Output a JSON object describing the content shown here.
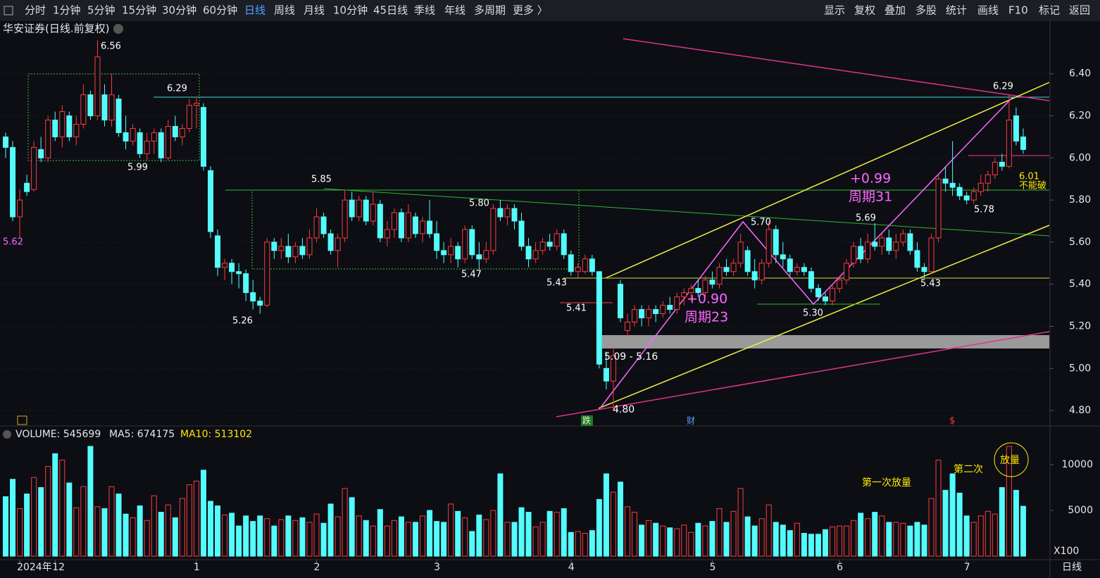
{
  "toolbar": {
    "left": [
      "分时",
      "1分钟",
      "5分钟",
      "15分钟",
      "30分钟",
      "60分钟",
      "日线",
      "周线",
      "月线",
      "10分钟",
      "45日线",
      "季线",
      "年线",
      "多周期",
      "更多 〉"
    ],
    "right": [
      "显示",
      "复权",
      "叠加",
      "多股",
      "统计",
      "画线",
      "F10",
      "标记",
      "返回"
    ]
  },
  "chart_data": {
    "type": "candlestick",
    "title": "华安证券(日线.前复权)",
    "up_color": "#ff3b3b",
    "down_color": "#54fcfc",
    "categories": [
      null,
      null,
      "2024年",
      null,
      null,
      null,
      null,
      "12",
      null,
      null,
      null,
      null,
      null,
      null,
      null,
      null,
      null,
      null,
      null,
      null,
      null,
      null,
      null,
      null,
      null,
      null,
      null,
      "1",
      null,
      null,
      null,
      null,
      null,
      null,
      null,
      null,
      null,
      null,
      null,
      null,
      null,
      null,
      null,
      null,
      "2",
      null,
      null,
      null,
      null,
      null,
      null,
      null,
      null,
      null,
      null,
      null,
      null,
      null,
      null,
      null,
      null,
      "3",
      null,
      null,
      null,
      null,
      null,
      null,
      null,
      null,
      null,
      null,
      null,
      null,
      null,
      null,
      null,
      null,
      null,
      null,
      "4",
      null,
      null,
      null,
      null,
      null,
      null,
      null,
      null,
      null,
      null,
      null,
      null,
      null,
      null,
      null,
      null,
      null,
      null,
      null,
      "5",
      null,
      null,
      null,
      null,
      null,
      null,
      null,
      null,
      null,
      null,
      null,
      null,
      null,
      null,
      null,
      null,
      null,
      "6",
      null,
      null,
      null,
      null,
      null,
      null,
      null,
      null,
      null,
      null,
      null,
      null,
      null,
      null,
      null,
      null,
      null,
      "7",
      null,
      null,
      null,
      null,
      null,
      null,
      null,
      null
    ],
    "ohlc": [
      [
        6.1,
        6.12,
        6.0,
        6.05
      ],
      [
        6.05,
        6.08,
        5.7,
        5.72
      ],
      [
        5.72,
        5.85,
        5.62,
        5.8
      ],
      [
        5.88,
        5.92,
        5.82,
        5.84
      ],
      [
        5.85,
        6.08,
        5.84,
        6.05
      ],
      [
        6.04,
        6.1,
        5.98,
        6.0
      ],
      [
        6.0,
        6.2,
        5.98,
        6.18
      ],
      [
        6.18,
        6.22,
        6.08,
        6.1
      ],
      [
        6.1,
        6.25,
        6.05,
        6.22
      ],
      [
        6.2,
        6.22,
        6.08,
        6.1
      ],
      [
        6.1,
        6.2,
        6.06,
        6.16
      ],
      [
        6.16,
        6.35,
        6.14,
        6.3
      ],
      [
        6.3,
        6.32,
        6.18,
        6.2
      ],
      [
        6.2,
        6.56,
        6.18,
        6.48
      ],
      [
        6.3,
        6.35,
        6.15,
        6.18
      ],
      [
        6.18,
        6.4,
        6.15,
        6.3
      ],
      [
        6.28,
        6.3,
        6.1,
        6.12
      ],
      [
        6.12,
        6.2,
        6.04,
        6.08
      ],
      [
        6.08,
        6.16,
        6.06,
        6.14
      ],
      [
        6.12,
        6.14,
        6.0,
        6.02
      ],
      [
        6.02,
        6.12,
        5.99,
        6.08
      ],
      [
        6.08,
        6.14,
        6.02,
        6.12
      ],
      [
        6.12,
        6.14,
        5.98,
        6.0
      ],
      [
        6.0,
        6.18,
        5.99,
        6.15
      ],
      [
        6.15,
        6.2,
        6.08,
        6.1
      ],
      [
        6.1,
        6.16,
        6.06,
        6.14
      ],
      [
        6.14,
        6.28,
        6.12,
        6.25
      ],
      [
        6.25,
        6.29,
        6.14,
        6.26
      ],
      [
        6.24,
        6.26,
        5.94,
        5.96
      ],
      [
        5.94,
        5.96,
        5.62,
        5.65
      ],
      [
        5.63,
        5.66,
        5.44,
        5.48
      ],
      [
        5.48,
        5.52,
        5.42,
        5.5
      ],
      [
        5.5,
        5.52,
        5.4,
        5.46
      ],
      [
        5.46,
        5.5,
        5.38,
        5.45
      ],
      [
        5.45,
        5.47,
        5.32,
        5.36
      ],
      [
        5.36,
        5.42,
        5.28,
        5.32
      ],
      [
        5.32,
        5.34,
        5.26,
        5.3
      ],
      [
        5.3,
        5.62,
        5.29,
        5.6
      ],
      [
        5.6,
        5.62,
        5.52,
        5.56
      ],
      [
        5.56,
        5.62,
        5.52,
        5.58
      ],
      [
        5.58,
        5.64,
        5.5,
        5.53
      ],
      [
        5.53,
        5.6,
        5.5,
        5.58
      ],
      [
        5.58,
        5.62,
        5.52,
        5.54
      ],
      [
        5.54,
        5.66,
        5.52,
        5.62
      ],
      [
        5.62,
        5.76,
        5.6,
        5.72
      ],
      [
        5.72,
        5.74,
        5.62,
        5.64
      ],
      [
        5.64,
        5.66,
        5.54,
        5.56
      ],
      [
        5.56,
        5.64,
        5.48,
        5.62
      ],
      [
        5.62,
        5.85,
        5.6,
        5.8
      ],
      [
        5.8,
        5.84,
        5.7,
        5.72
      ],
      [
        5.72,
        5.82,
        5.7,
        5.8
      ],
      [
        5.8,
        5.82,
        5.68,
        5.7
      ],
      [
        5.7,
        5.84,
        5.68,
        5.78
      ],
      [
        5.78,
        5.8,
        5.6,
        5.62
      ],
      [
        5.62,
        5.7,
        5.58,
        5.66
      ],
      [
        5.66,
        5.76,
        5.62,
        5.74
      ],
      [
        5.74,
        5.76,
        5.6,
        5.62
      ],
      [
        5.62,
        5.78,
        5.6,
        5.74
      ],
      [
        5.72,
        5.74,
        5.62,
        5.64
      ],
      [
        5.64,
        5.72,
        5.6,
        5.7
      ],
      [
        5.7,
        5.8,
        5.62,
        5.64
      ],
      [
        5.64,
        5.7,
        5.52,
        5.56
      ],
      [
        5.56,
        5.6,
        5.5,
        5.54
      ],
      [
        5.54,
        5.62,
        5.5,
        5.58
      ],
      [
        5.58,
        5.6,
        5.48,
        5.52
      ],
      [
        5.52,
        5.68,
        5.5,
        5.66
      ],
      [
        5.66,
        5.68,
        5.52,
        5.54
      ],
      [
        5.54,
        5.6,
        5.47,
        5.52
      ],
      [
        5.52,
        5.6,
        5.5,
        5.56
      ],
      [
        5.56,
        5.78,
        5.54,
        5.76
      ],
      [
        5.76,
        5.8,
        5.7,
        5.72
      ],
      [
        5.72,
        5.78,
        5.68,
        5.76
      ],
      [
        5.76,
        5.78,
        5.66,
        5.7
      ],
      [
        5.7,
        5.74,
        5.56,
        5.58
      ],
      [
        5.58,
        5.62,
        5.48,
        5.52
      ],
      [
        5.52,
        5.6,
        5.5,
        5.56
      ],
      [
        5.56,
        5.62,
        5.54,
        5.6
      ],
      [
        5.6,
        5.64,
        5.56,
        5.58
      ],
      [
        5.58,
        5.66,
        5.56,
        5.64
      ],
      [
        5.64,
        5.66,
        5.52,
        5.54
      ],
      [
        5.54,
        5.56,
        5.44,
        5.46
      ],
      [
        5.46,
        5.5,
        5.43,
        5.48
      ],
      [
        5.46,
        5.54,
        5.45,
        5.52
      ],
      [
        5.52,
        5.54,
        5.44,
        5.46
      ],
      [
        5.46,
        5.46,
        5.0,
        5.02
      ],
      [
        5.0,
        5.08,
        4.9,
        4.94
      ],
      [
        4.94,
        5.1,
        4.8,
        5.06
      ],
      [
        5.4,
        5.42,
        5.22,
        5.24
      ],
      [
        5.18,
        5.26,
        5.15,
        5.22
      ],
      [
        5.22,
        5.3,
        5.2,
        5.28
      ],
      [
        5.28,
        5.3,
        5.2,
        5.24
      ],
      [
        5.24,
        5.3,
        5.2,
        5.28
      ],
      [
        5.28,
        5.3,
        5.22,
        5.26
      ],
      [
        5.26,
        5.32,
        5.24,
        5.3
      ],
      [
        5.3,
        5.34,
        5.26,
        5.28
      ],
      [
        5.28,
        5.36,
        5.26,
        5.34
      ],
      [
        5.34,
        5.38,
        5.3,
        5.36
      ],
      [
        5.36,
        5.4,
        5.32,
        5.38
      ],
      [
        5.38,
        5.42,
        5.34,
        5.36
      ],
      [
        5.36,
        5.44,
        5.34,
        5.42
      ],
      [
        5.42,
        5.46,
        5.38,
        5.4
      ],
      [
        5.4,
        5.5,
        5.38,
        5.48
      ],
      [
        5.48,
        5.52,
        5.44,
        5.46
      ],
      [
        5.46,
        5.52,
        5.44,
        5.5
      ],
      [
        5.5,
        5.64,
        5.48,
        5.6
      ],
      [
        5.56,
        5.58,
        5.44,
        5.46
      ],
      [
        5.46,
        5.52,
        5.38,
        5.42
      ],
      [
        5.42,
        5.52,
        5.4,
        5.5
      ],
      [
        5.5,
        5.7,
        5.48,
        5.66
      ],
      [
        5.66,
        5.68,
        5.5,
        5.54
      ],
      [
        5.54,
        5.6,
        5.48,
        5.52
      ],
      [
        5.52,
        5.54,
        5.44,
        5.46
      ],
      [
        5.46,
        5.5,
        5.44,
        5.48
      ],
      [
        5.48,
        5.5,
        5.44,
        5.46
      ],
      [
        5.46,
        5.48,
        5.36,
        5.38
      ],
      [
        5.38,
        5.4,
        5.32,
        5.34
      ],
      [
        5.34,
        5.36,
        5.3,
        5.32
      ],
      [
        5.32,
        5.4,
        5.3,
        5.38
      ],
      [
        5.38,
        5.44,
        5.36,
        5.42
      ],
      [
        5.42,
        5.52,
        5.4,
        5.5
      ],
      [
        5.5,
        5.6,
        5.48,
        5.58
      ],
      [
        5.58,
        5.62,
        5.5,
        5.52
      ],
      [
        5.52,
        5.64,
        5.5,
        5.6
      ],
      [
        5.6,
        5.69,
        5.56,
        5.58
      ],
      [
        5.58,
        5.64,
        5.54,
        5.62
      ],
      [
        5.62,
        5.66,
        5.54,
        5.56
      ],
      [
        5.56,
        5.64,
        5.52,
        5.6
      ],
      [
        5.6,
        5.66,
        5.58,
        5.64
      ],
      [
        5.64,
        5.66,
        5.54,
        5.56
      ],
      [
        5.56,
        5.6,
        5.46,
        5.48
      ],
      [
        5.48,
        5.5,
        5.43,
        5.46
      ],
      [
        5.46,
        5.64,
        5.45,
        5.62
      ],
      [
        5.62,
        5.92,
        5.6,
        5.9
      ],
      [
        5.9,
        5.96,
        5.84,
        5.88
      ],
      [
        5.88,
        6.08,
        5.82,
        5.86
      ],
      [
        5.86,
        5.88,
        5.8,
        5.82
      ],
      [
        5.82,
        5.84,
        5.78,
        5.8
      ],
      [
        5.8,
        5.86,
        5.78,
        5.84
      ],
      [
        5.84,
        5.92,
        5.82,
        5.88
      ],
      [
        5.88,
        5.94,
        5.84,
        5.92
      ],
      [
        5.92,
        6.0,
        5.9,
        5.98
      ],
      [
        5.98,
        6.02,
        5.94,
        5.96
      ],
      [
        5.96,
        6.3,
        5.95,
        6.18
      ],
      [
        6.2,
        6.24,
        6.06,
        6.08
      ],
      [
        6.1,
        6.14,
        6.02,
        6.04
      ]
    ],
    "volume": [
      6500,
      8400,
      5200,
      6800,
      8600,
      7500,
      9800,
      11200,
      10500,
      8000,
      5300,
      7600,
      12000,
      5400,
      5200,
      7600,
      6800,
      4600,
      4200,
      5500,
      3900,
      6600,
      4800,
      5600,
      4200,
      6300,
      7800,
      8200,
      9400,
      6000,
      5500,
      4500,
      4700,
      3300,
      4400,
      3800,
      4400,
      4100,
      3300,
      4000,
      4400,
      3900,
      4200,
      3700,
      4600,
      3600,
      5700,
      4300,
      7400,
      6400,
      4400,
      3900,
      3300,
      5100,
      3300,
      3900,
      4300,
      3700,
      3700,
      4400,
      5000,
      3800,
      3700,
      5700,
      4900,
      4200,
      2700,
      4500,
      4000,
      5000,
      9000,
      3700,
      3700,
      5300,
      4800,
      3200,
      3700,
      4900,
      4800,
      5200,
      2600,
      2700,
      2500,
      2800,
      6200,
      9000,
      7000,
      8100,
      5400,
      4800,
      3400,
      3900,
      3600,
      3300,
      3100,
      3000,
      3400,
      2600,
      3600,
      3300,
      3800,
      5200,
      3700,
      4900,
      7400,
      4300,
      3300,
      4100,
      5600,
      3700,
      3400,
      2800,
      3600,
      2500,
      2400,
      2400,
      2900,
      3200,
      3300,
      3300,
      3900,
      4700,
      4100,
      4800,
      4400,
      3700,
      3700,
      3600,
      3300,
      3700,
      3400,
      6300,
      10500,
      7200,
      9000,
      6900,
      4400,
      3700,
      4400,
      4900,
      4600,
      7500,
      12000,
      7200,
      5456.99
    ],
    "ylim": [
      4.73,
      6.65
    ],
    "yticks": [
      {
        "value": 4.8,
        "label": "4.80"
      },
      {
        "value": 5.0,
        "label": "5.00"
      },
      {
        "value": 5.2,
        "label": "5.20"
      },
      {
        "value": 5.4,
        "label": "5.40"
      },
      {
        "value": 5.6,
        "label": "5.60"
      },
      {
        "value": 5.8,
        "label": "5.80"
      },
      {
        "value": 6.0,
        "label": "6.00"
      },
      {
        "value": 6.2,
        "label": "6.20"
      },
      {
        "value": 6.4,
        "label": "6.40"
      }
    ],
    "volume_ylim": [
      0,
      14000
    ],
    "volume_yticks": [
      5000,
      10000
    ],
    "volume_legend": [
      "VOLUME: 545699",
      "MA5: 674175",
      "MA10: 513102"
    ],
    "volume_unit": "X100",
    "period": "日线",
    "markers": [
      "跌",
      "财",
      "$"
    ],
    "annotations": [
      "6.56",
      "6.29",
      "5.99",
      "5.62",
      "5.26",
      "5.85",
      "5.80",
      "5.47",
      "5.43",
      "5.41",
      "5.09 - 5.16",
      "4.80",
      "+0.90",
      "周期23",
      "5.70",
      "5.30",
      "+0.99",
      "周期31",
      "5.69",
      "5.43",
      "5.78",
      "6.29",
      "6.01",
      "不能破",
      "第一次放量",
      "第二次",
      "放量"
    ]
  }
}
